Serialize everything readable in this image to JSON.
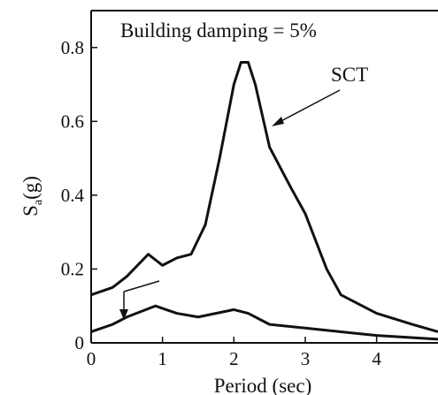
{
  "chart_data": {
    "type": "line",
    "annotation": "Building damping = 5%",
    "xlabel": "Period (sec)",
    "ylabel": {
      "main": "S",
      "sub": "a",
      "unit": "(g)"
    },
    "xlim": [
      0,
      4.86
    ],
    "ylim": [
      0,
      0.9
    ],
    "xticks": [
      0,
      1,
      2,
      3,
      4
    ],
    "yticks": [
      0,
      0.2,
      0.4,
      0.6,
      0.8
    ],
    "series": [
      {
        "name": "SCT",
        "color": "#111111",
        "x": [
          0,
          0.3,
          0.5,
          0.8,
          1.0,
          1.2,
          1.4,
          1.6,
          1.8,
          2.0,
          2.1,
          2.2,
          2.3,
          2.5,
          2.8,
          3.0,
          3.3,
          3.5,
          4.0,
          4.5,
          4.86
        ],
        "values": [
          0.13,
          0.15,
          0.18,
          0.24,
          0.21,
          0.23,
          0.24,
          0.32,
          0.5,
          0.7,
          0.76,
          0.76,
          0.7,
          0.53,
          0.42,
          0.35,
          0.2,
          0.13,
          0.08,
          0.05,
          0.03
        ]
      },
      {
        "name": null,
        "color": "#111111",
        "x": [
          0,
          0.3,
          0.5,
          0.9,
          1.2,
          1.5,
          2.0,
          2.2,
          2.5,
          3.0,
          3.5,
          4.0,
          4.86
        ],
        "values": [
          0.03,
          0.05,
          0.07,
          0.1,
          0.08,
          0.07,
          0.09,
          0.08,
          0.05,
          0.04,
          0.03,
          0.02,
          0.01
        ]
      }
    ]
  }
}
